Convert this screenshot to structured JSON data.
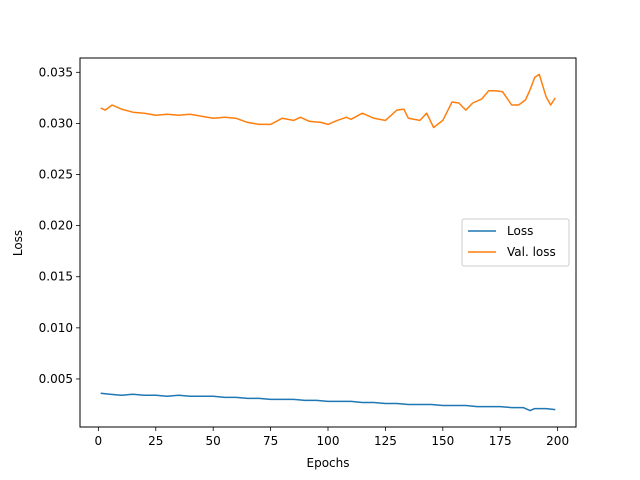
{
  "chart_data": {
    "type": "line",
    "title": "",
    "xlabel": "Epochs",
    "ylabel": "Loss",
    "xlim": [
      -8,
      208
    ],
    "ylim": [
      0.0003,
      0.0364
    ],
    "xticks": [
      0,
      25,
      50,
      75,
      100,
      125,
      150,
      175,
      200
    ],
    "yticks": [
      0.005,
      0.01,
      0.015,
      0.02,
      0.025,
      0.03,
      0.035
    ],
    "ytick_labels": [
      "0.005",
      "0.010",
      "0.015",
      "0.020",
      "0.025",
      "0.030",
      "0.035"
    ],
    "grid": false,
    "legend": "center-right",
    "series": [
      {
        "name": "Loss",
        "color": "#1f77b4",
        "x": [
          1,
          5,
          10,
          15,
          20,
          25,
          30,
          35,
          40,
          45,
          50,
          55,
          60,
          65,
          70,
          75,
          80,
          85,
          90,
          95,
          100,
          105,
          110,
          115,
          120,
          125,
          130,
          135,
          140,
          145,
          150,
          155,
          160,
          165,
          170,
          175,
          180,
          185,
          188,
          190,
          195,
          199
        ],
        "y": [
          0.0036,
          0.0035,
          0.0034,
          0.0035,
          0.0034,
          0.0034,
          0.0033,
          0.0034,
          0.0033,
          0.0033,
          0.0033,
          0.0032,
          0.0032,
          0.0031,
          0.0031,
          0.003,
          0.003,
          0.003,
          0.0029,
          0.0029,
          0.0028,
          0.0028,
          0.0028,
          0.0027,
          0.0027,
          0.0026,
          0.0026,
          0.0025,
          0.0025,
          0.0025,
          0.0024,
          0.0024,
          0.0024,
          0.0023,
          0.0023,
          0.0023,
          0.0022,
          0.0022,
          0.0019,
          0.0021,
          0.0021,
          0.002
        ]
      },
      {
        "name": "Val. loss",
        "color": "#ff7f0e",
        "x": [
          1,
          3,
          6,
          10,
          15,
          20,
          25,
          30,
          35,
          40,
          45,
          50,
          55,
          60,
          65,
          70,
          75,
          80,
          85,
          88,
          92,
          97,
          100,
          104,
          108,
          110,
          115,
          120,
          125,
          130,
          133,
          135,
          140,
          143,
          146,
          150,
          154,
          157,
          160,
          163,
          167,
          170,
          173,
          176,
          180,
          183,
          186,
          188,
          190,
          192,
          195,
          197,
          199
        ],
        "y": [
          0.0315,
          0.0313,
          0.0318,
          0.0314,
          0.0311,
          0.031,
          0.0308,
          0.0309,
          0.0308,
          0.0309,
          0.0307,
          0.0305,
          0.0306,
          0.0305,
          0.0301,
          0.0299,
          0.0299,
          0.0305,
          0.0303,
          0.0306,
          0.0302,
          0.0301,
          0.0299,
          0.0303,
          0.0306,
          0.0304,
          0.031,
          0.0305,
          0.0303,
          0.0313,
          0.0314,
          0.0305,
          0.0303,
          0.031,
          0.0296,
          0.0303,
          0.0321,
          0.032,
          0.0313,
          0.032,
          0.0324,
          0.0332,
          0.0332,
          0.0331,
          0.0318,
          0.0318,
          0.0323,
          0.0333,
          0.0345,
          0.0348,
          0.0326,
          0.0318,
          0.0325
        ]
      }
    ]
  }
}
